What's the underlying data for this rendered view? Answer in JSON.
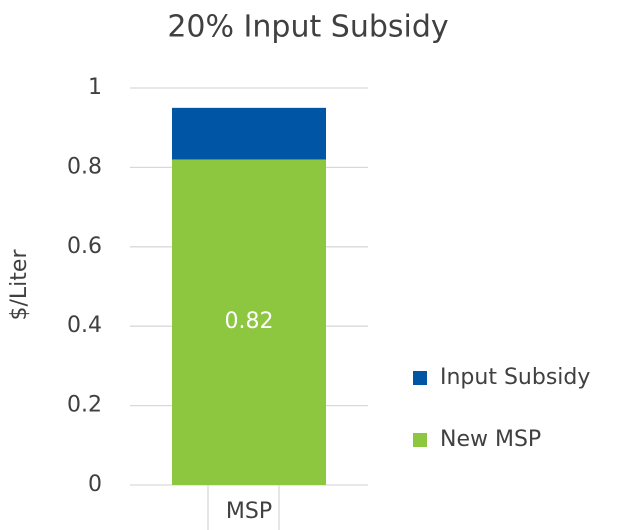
{
  "chart_data": {
    "type": "stacked_bar",
    "title": "20% Input Subsidy",
    "y_label": "$/Liter",
    "categories": [
      "MSP"
    ],
    "series": [
      {
        "name": "New MSP",
        "color": "#8dc63f",
        "values": [
          0.82
        ]
      },
      {
        "name": "Input Subsidy",
        "color": "#0055a5",
        "values": [
          0.13
        ]
      }
    ],
    "data_labels": [
      {
        "series": 0,
        "index": 0
      }
    ],
    "ylim": [
      0,
      1
    ],
    "yticks": [
      0,
      0.2,
      0.4,
      0.6,
      0.8,
      1
    ],
    "grid": true,
    "legend": "right"
  }
}
